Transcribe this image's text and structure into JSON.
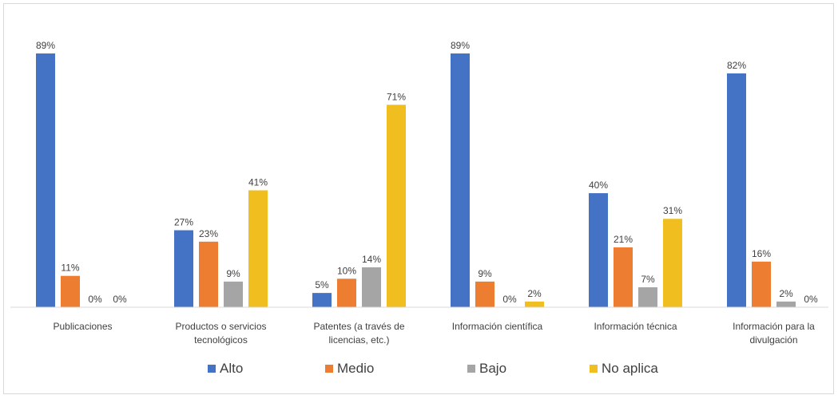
{
  "chart_data": {
    "type": "bar",
    "categories": [
      [
        "Publicaciones"
      ],
      [
        "Productos o servicios",
        "tecnológicos"
      ],
      [
        "Patentes (a través de",
        "licencias, etc.)"
      ],
      [
        "Información científica"
      ],
      [
        "Información técnica"
      ],
      [
        "Información para la",
        "divulgación"
      ]
    ],
    "series": [
      {
        "name": "Alto",
        "color": "#4472C4",
        "values": [
          89,
          27,
          5,
          89,
          40,
          82
        ]
      },
      {
        "name": "Medio",
        "color": "#ED7D31",
        "values": [
          11,
          23,
          10,
          9,
          21,
          16
        ]
      },
      {
        "name": "Bajo",
        "color": "#A5A5A5",
        "values": [
          0,
          9,
          14,
          0,
          7,
          2
        ]
      },
      {
        "name": "No aplica",
        "color": "#F0BE1E",
        "values": [
          0,
          41,
          71,
          2,
          31,
          0
        ]
      }
    ],
    "value_suffix": "%",
    "ylim": [
      0,
      100
    ],
    "grid": false,
    "legend_position": "bottom"
  }
}
